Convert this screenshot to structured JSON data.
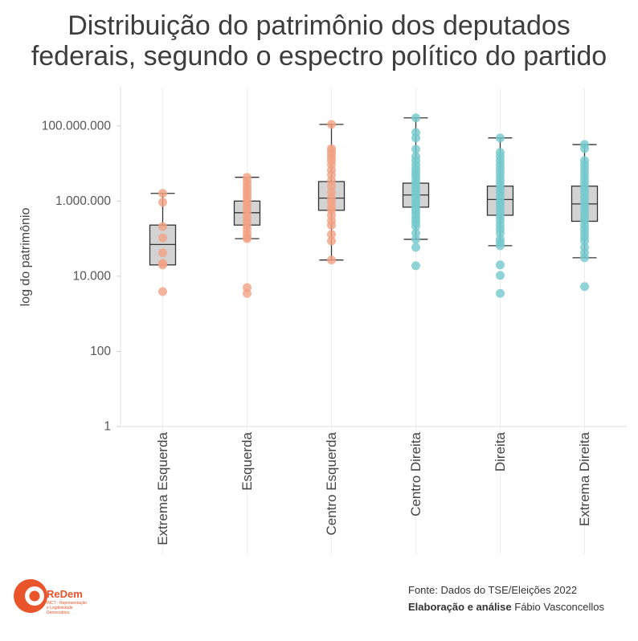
{
  "chart_data": {
    "type": "box",
    "title": [
      "Distribuição do patrimônio dos deputados",
      "federais, segundo o espectro político do partido"
    ],
    "ylabel": "log do patrimônio",
    "y_scale": "log",
    "ylim": [
      1,
      1000000000
    ],
    "y_ticks": [
      1,
      100,
      10000,
      1000000,
      100000000
    ],
    "y_tick_labels": [
      "1",
      "100",
      "10.000",
      "1.000.000",
      "100.000.000"
    ],
    "grid": "vertical",
    "categories": [
      "Extrema Esquerda",
      "Esquerda",
      "Centro Esquerda",
      "Centro Direita",
      "Direita",
      "Extrema Direita"
    ],
    "groups": [
      {
        "color": "#F3A384",
        "box": {
          "whisker_low": 20000,
          "q1": 20000,
          "median": 70000,
          "q3": 230000,
          "whisker_high": 1600000
        },
        "points": [
          1600000,
          930000,
          210000,
          105000,
          42000,
          22000,
          20000,
          3900
        ]
      },
      {
        "color": "#F3A384",
        "box": {
          "whisker_low": 100000,
          "q1": 230000,
          "median": 490000,
          "q3": 1000000,
          "whisker_high": 4300000
        },
        "points": [
          4300000,
          3500000,
          2750000,
          2250000,
          1850000,
          1500000,
          1250000,
          1000000,
          800000,
          630000,
          490000,
          380000,
          300000,
          230000,
          180000,
          140000,
          110000,
          100000,
          5000,
          3500
        ]
      },
      {
        "color": "#F3A384",
        "box": {
          "whisker_low": 27000,
          "q1": 570000,
          "median": 1200000,
          "q3": 3300000,
          "whisker_high": 110000000
        },
        "points": [
          110000000,
          25000000,
          21700000,
          17800000,
          14700000,
          12000000,
          9400000,
          6700000,
          5000000,
          3500000,
          2500000,
          1700000,
          1200000,
          930000,
          690000,
          570000,
          420000,
          300000,
          230000,
          130000,
          87000,
          27000
        ]
      },
      {
        "color": "#74C9CD",
        "box": {
          "whisker_low": 96000,
          "q1": 690000,
          "median": 1450000,
          "q3": 3000000,
          "whisker_high": 164000000
        },
        "points": [
          164000000,
          67000000,
          48000000,
          24000000,
          15400000,
          12000000,
          9400000,
          7300000,
          6000000,
          5000000,
          4100000,
          3300000,
          2750000,
          2250000,
          1850000,
          1500000,
          1250000,
          1000000,
          840000,
          690000,
          570000,
          470000,
          380000,
          310000,
          260000,
          210000,
          140000,
          96000,
          59000,
          19000
        ]
      },
      {
        "color": "#74C9CD",
        "box": {
          "whisker_low": 65000,
          "q1": 420000,
          "median": 1100000,
          "q3": 2500000,
          "whisker_high": 48000000
        },
        "points": [
          48000000,
          19700000,
          15400000,
          12000000,
          9400000,
          7300000,
          5700000,
          4500000,
          3500000,
          2750000,
          2150000,
          1700000,
          1300000,
          1000000,
          800000,
          630000,
          490000,
          380000,
          300000,
          230000,
          180000,
          140000,
          96000,
          79000,
          65000,
          20000,
          10500,
          3500
        ]
      },
      {
        "color": "#74C9CD",
        "box": {
          "whisker_low": 31000,
          "q1": 290000,
          "median": 840000,
          "q3": 2500000,
          "whisker_high": 32000000
        },
        "points": [
          32000000,
          25000000,
          12000000,
          9400000,
          7300000,
          5700000,
          4500000,
          3500000,
          2750000,
          2150000,
          1700000,
          1300000,
          1000000,
          800000,
          630000,
          490000,
          380000,
          300000,
          230000,
          180000,
          140000,
          110000,
          87000,
          59000,
          42000,
          31000,
          5300
        ]
      }
    ],
    "box_fill": "#D3D3D3",
    "box_stroke": "#333333"
  },
  "footer": {
    "source": "Fonte: Dados do TSE/Eleições 2022",
    "credit_label": "Elaboração e análise",
    "credit_name": "Fábio Vasconcellos"
  },
  "logo": {
    "name": "ReDem",
    "tagline": "INCT - Representação e Legitimidade Democrática",
    "icon": "redem-logo-icon",
    "color": "#E9542B"
  }
}
